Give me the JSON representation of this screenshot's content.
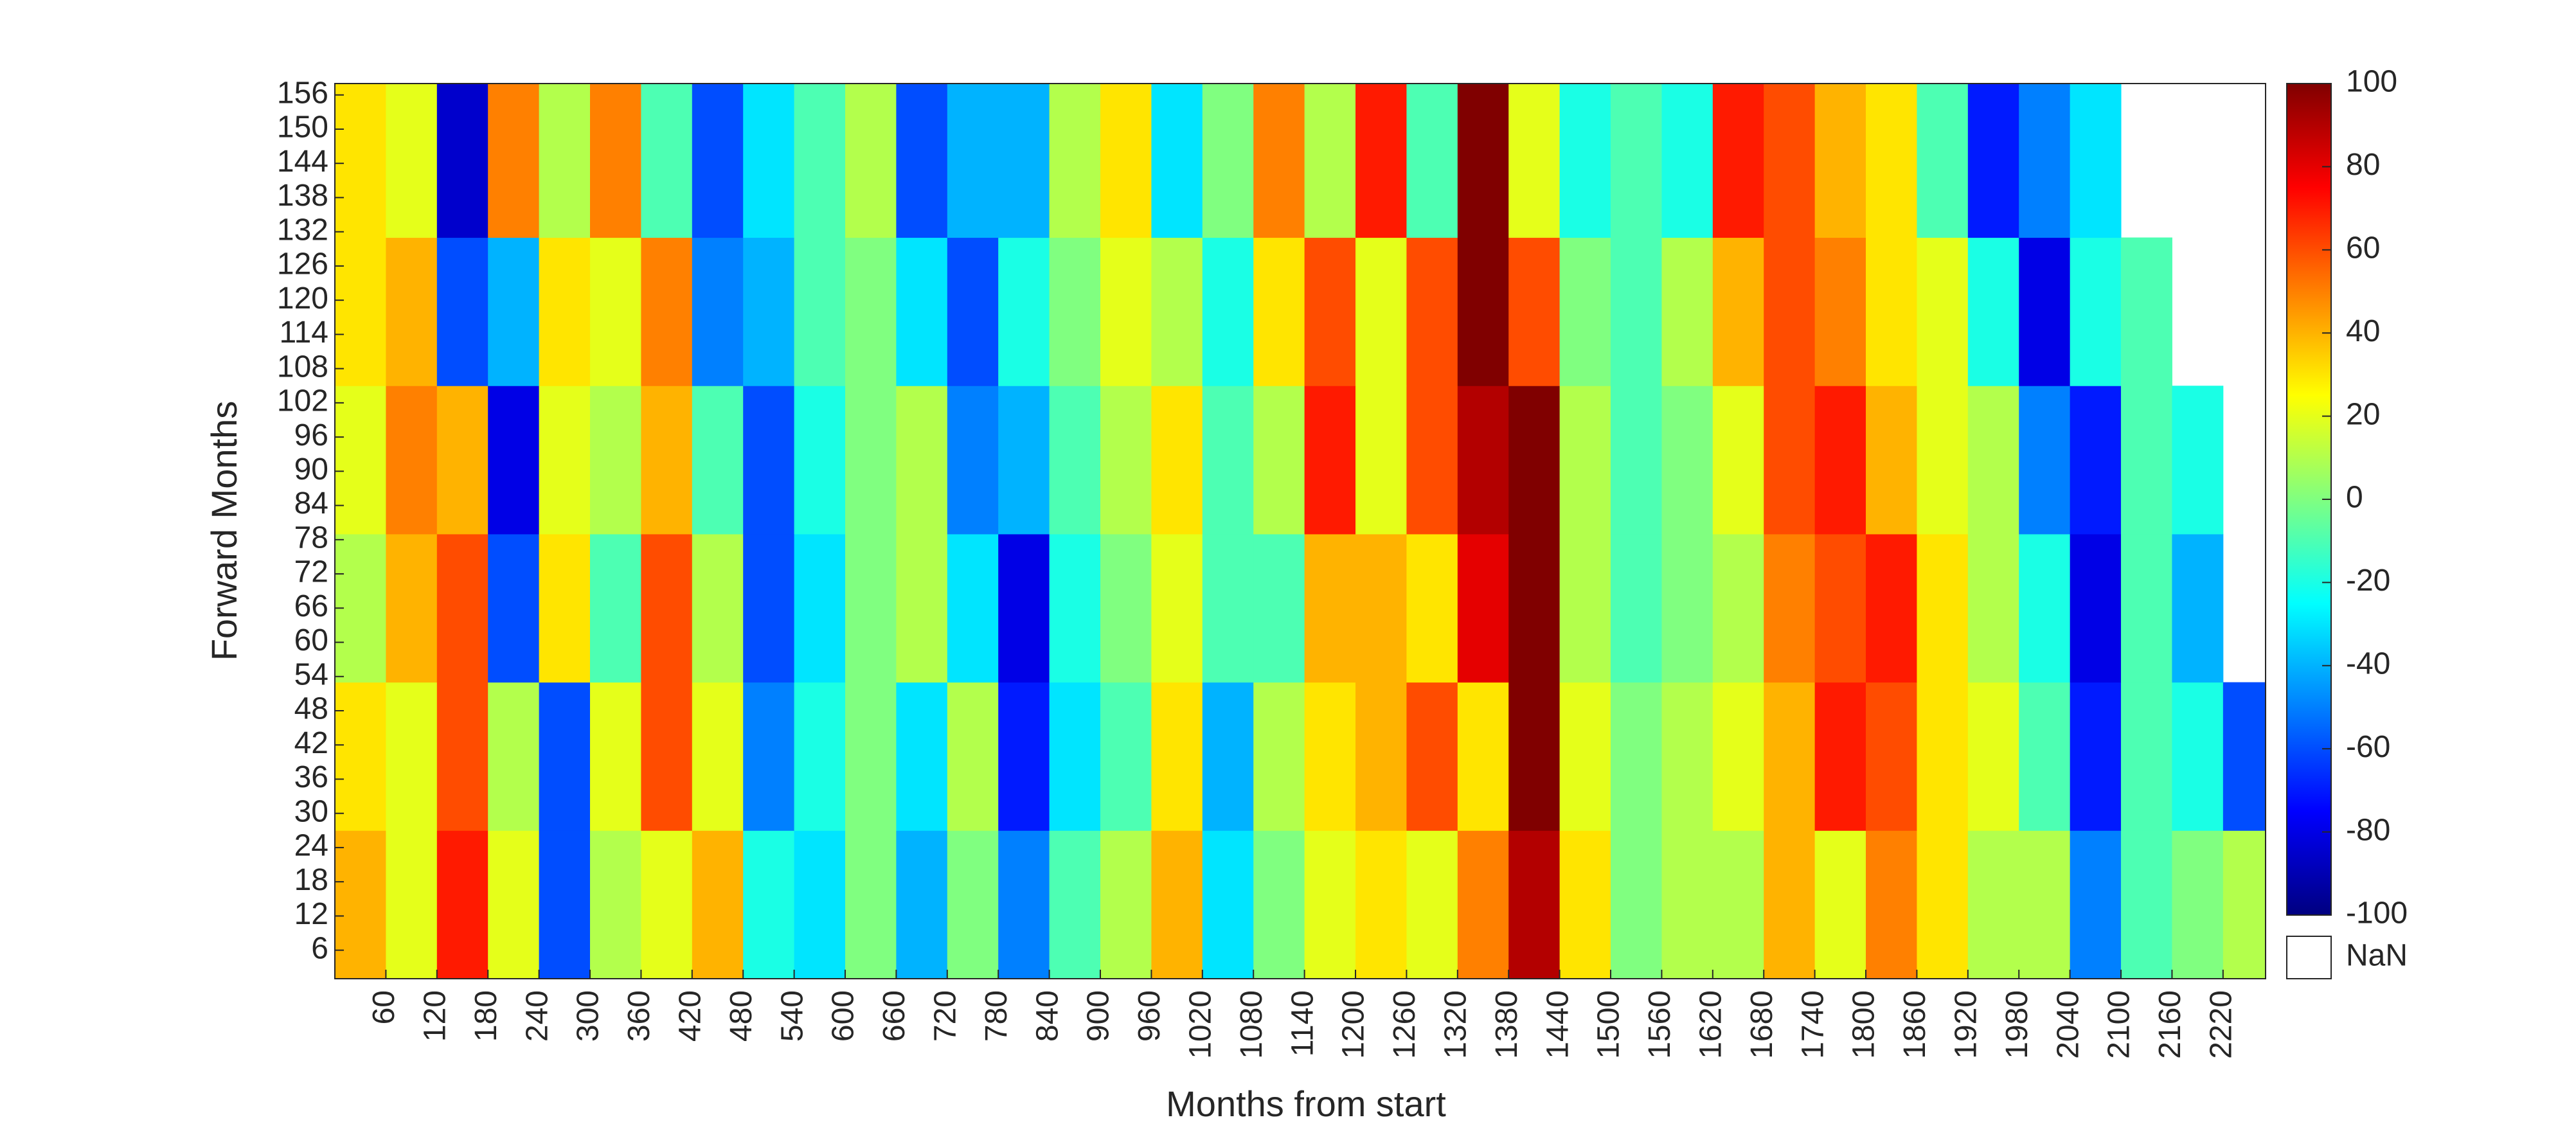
{
  "chart_data": {
    "type": "heatmap",
    "xlabel": "Months from start",
    "ylabel": "Forward Months",
    "colormap": "jet",
    "clim": [
      -100,
      100
    ],
    "colorbar_ticks": [
      -100,
      -80,
      -60,
      -40,
      -20,
      0,
      20,
      40,
      60,
      80,
      100
    ],
    "nan_label": "NaN",
    "nan_color": "#ffffff",
    "xlim": [
      0,
      2270
    ],
    "ylim": [
      1,
      158
    ],
    "xticks": [
      60,
      120,
      180,
      240,
      300,
      360,
      420,
      480,
      540,
      600,
      660,
      720,
      780,
      840,
      900,
      960,
      1020,
      1080,
      1140,
      1200,
      1260,
      1320,
      1380,
      1440,
      1500,
      1560,
      1620,
      1680,
      1740,
      1800,
      1860,
      1920,
      1980,
      2040,
      2100,
      2160,
      2220
    ],
    "yticks": [
      6,
      12,
      18,
      24,
      30,
      36,
      42,
      48,
      54,
      60,
      66,
      72,
      78,
      84,
      90,
      96,
      102,
      108,
      114,
      120,
      126,
      132,
      138,
      144,
      150,
      156
    ],
    "xbins": [
      0,
      60,
      120,
      180,
      240,
      300,
      360,
      420,
      480,
      540,
      600,
      660,
      720,
      780,
      840,
      900,
      960,
      1020,
      1080,
      1140,
      1200,
      1260,
      1320,
      1380,
      1440,
      1500,
      1560,
      1620,
      1680,
      1740,
      1800,
      1860,
      1920,
      1980,
      2040,
      2100,
      2160,
      2220,
      2270
    ],
    "ybins": [
      1,
      27,
      53,
      79,
      105,
      131,
      158
    ],
    "values": [
      [
        40,
        20,
        70,
        20,
        -60,
        10,
        20,
        40,
        -20,
        -30,
        0,
        -40,
        0,
        -50,
        -10,
        10,
        40,
        -30,
        0,
        20,
        30,
        20,
        50,
        90,
        30,
        0,
        10,
        10,
        40,
        20,
        50,
        30,
        10,
        10,
        -50,
        -10,
        0,
        10
      ],
      [
        30,
        20,
        60,
        10,
        -60,
        20,
        60,
        20,
        -50,
        -20,
        0,
        -30,
        10,
        -70,
        -30,
        -10,
        30,
        -40,
        10,
        30,
        40,
        60,
        30,
        100,
        20,
        0,
        10,
        20,
        40,
        70,
        60,
        30,
        20,
        -10,
        -70,
        -10,
        -20,
        -60
      ],
      [
        10,
        40,
        60,
        -60,
        30,
        -10,
        60,
        10,
        -60,
        -30,
        0,
        10,
        -30,
        -80,
        -20,
        0,
        20,
        -10,
        -10,
        40,
        40,
        30,
        80,
        100,
        10,
        -10,
        0,
        10,
        50,
        60,
        70,
        30,
        10,
        -20,
        -80,
        -10,
        -40,
        null
      ],
      [
        20,
        50,
        40,
        -80,
        20,
        10,
        40,
        -10,
        -60,
        -20,
        0,
        10,
        -50,
        -40,
        -10,
        10,
        30,
        -10,
        10,
        70,
        20,
        60,
        90,
        100,
        10,
        -10,
        0,
        20,
        60,
        70,
        40,
        20,
        10,
        -50,
        -70,
        -10,
        -20,
        null
      ],
      [
        30,
        40,
        -60,
        -40,
        30,
        20,
        50,
        -50,
        -40,
        -10,
        0,
        -30,
        -60,
        -20,
        0,
        20,
        10,
        -20,
        30,
        60,
        20,
        60,
        100,
        60,
        0,
        -10,
        10,
        40,
        60,
        50,
        30,
        20,
        -20,
        -80,
        -20,
        -10,
        null,
        null
      ],
      [
        30,
        20,
        -85,
        50,
        10,
        50,
        -10,
        -60,
        -30,
        -10,
        10,
        -60,
        -40,
        -40,
        10,
        30,
        -30,
        0,
        50,
        10,
        70,
        -10,
        100,
        20,
        -20,
        -10,
        -20,
        70,
        60,
        40,
        30,
        -10,
        -70,
        -50,
        -30,
        null,
        null,
        null
      ]
    ]
  }
}
